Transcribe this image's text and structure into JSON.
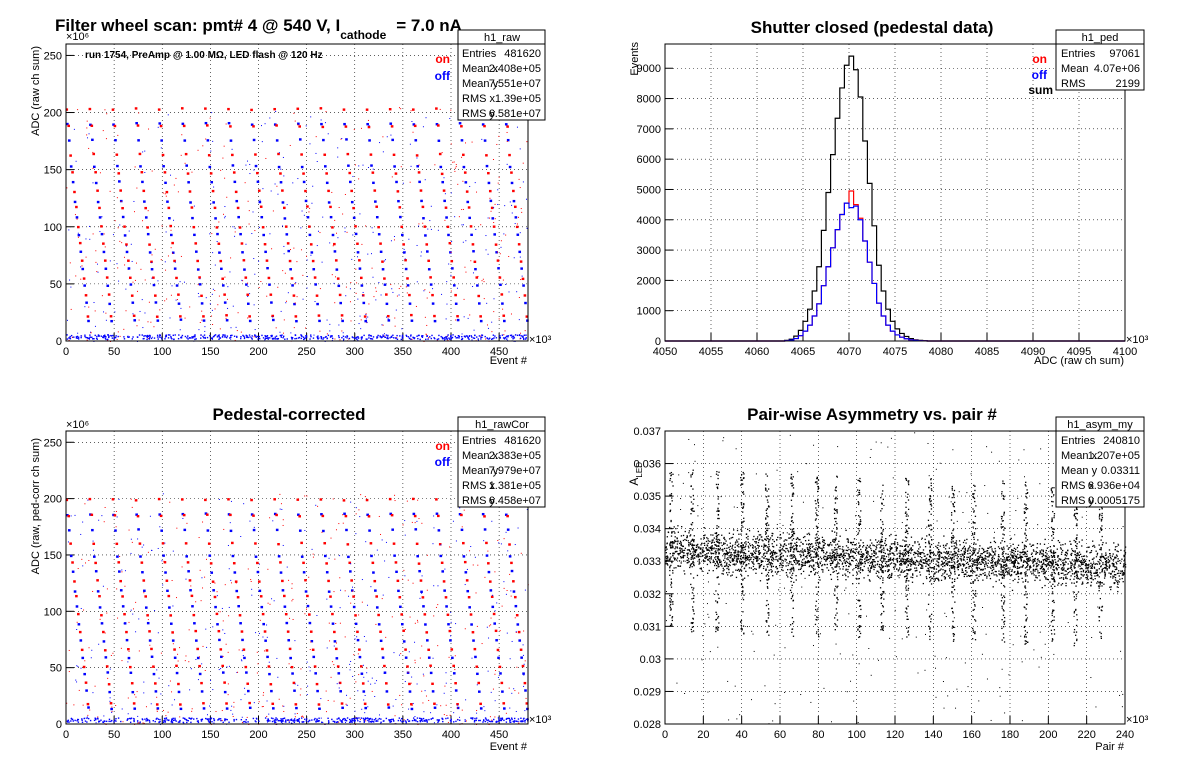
{
  "chart_data": [
    {
      "id": "raw",
      "type": "scatter",
      "title": "Filter wheel scan: pmt#   4 @   540 V, I",
      "title_sub": "cathode",
      "title_tail": "= 7.0 nA",
      "subtitle": "run 1754, PreAmp @ 1.00 MΩ, LED flash @  120 Hz",
      "xlabel": "Event #",
      "ylabel": "ADC (raw ch sum)",
      "x_multiplier": "×10³",
      "y_multiplier": "×10⁶",
      "xlim": [
        0,
        480
      ],
      "ylim": [
        0,
        260
      ],
      "xticks": [
        "0",
        "50",
        "100",
        "150",
        "200",
        "250",
        "300",
        "350",
        "400",
        "450"
      ],
      "yticks": [
        "0",
        "50",
        "100",
        "150",
        "200",
        "250"
      ],
      "grid": true,
      "legend": {
        "placement": "top-right",
        "entries": [
          "on",
          "off"
        ]
      },
      "levels_on": [
        203,
        188,
        163,
        147,
        131,
        117,
        100,
        85,
        70,
        55,
        40,
        22
      ],
      "levels_off": [
        190,
        176,
        153,
        139,
        122,
        108,
        93,
        78,
        63,
        49,
        33,
        18
      ],
      "cycle": 24,
      "series": [
        {
          "name": "on",
          "color": "#ff0000"
        },
        {
          "name": "off",
          "color": "#0000ff"
        }
      ],
      "stats": {
        "name": "h1_raw",
        "rows": [
          [
            "Entries",
            "481620"
          ],
          [
            "Mean x",
            "2.408e+05"
          ],
          [
            "Mean y",
            "7.551e+07"
          ],
          [
            "RMS x",
            "1.39e+05"
          ],
          [
            "RMS y",
            "6.581e+07"
          ]
        ]
      }
    },
    {
      "id": "ped",
      "type": "line",
      "title": "Shutter closed (pedestal data)",
      "xlabel": "ADC (raw ch sum)",
      "ylabel": "Events",
      "x_multiplier": "×10³",
      "xlim": [
        4050,
        4100
      ],
      "ylim": [
        0,
        9800
      ],
      "xticks": [
        "4050",
        "4055",
        "4060",
        "4065",
        "4070",
        "4075",
        "4080",
        "4085",
        "4090",
        "4095",
        "4100"
      ],
      "yticks": [
        "0",
        "1000",
        "2000",
        "3000",
        "4000",
        "5000",
        "6000",
        "7000",
        "8000",
        "9000"
      ],
      "grid": true,
      "legend": {
        "placement": "top-right",
        "entries": [
          "on",
          "off",
          "sum"
        ]
      },
      "x": [
        4063.0,
        4063.5,
        4064.0,
        4064.5,
        4065.0,
        4065.5,
        4066.0,
        4066.5,
        4067.0,
        4067.5,
        4068.0,
        4068.5,
        4069.0,
        4069.5,
        4070.0,
        4070.5,
        4071.0,
        4071.5,
        4072.0,
        4072.5,
        4073.0,
        4073.5,
        4074.0,
        4074.5,
        4075.0,
        4075.5,
        4076.0,
        4076.5,
        4077.0,
        4077.5,
        4078.0
      ],
      "series": [
        {
          "name": "sum",
          "color": "#000000",
          "values": [
            20,
            60,
            160,
            350,
            650,
            1050,
            1650,
            2450,
            3650,
            4900,
            6150,
            7350,
            8350,
            9100,
            9400,
            8950,
            8050,
            6600,
            5200,
            3800,
            2500,
            1650,
            1050,
            650,
            400,
            250,
            150,
            80,
            40,
            20,
            10
          ]
        },
        {
          "name": "on",
          "color": "#ff0000",
          "values": [
            10,
            30,
            80,
            175,
            325,
            525,
            825,
            1225,
            1825,
            2450,
            3075,
            3675,
            4175,
            4550,
            4950,
            4500,
            4050,
            3300,
            2600,
            1900,
            1250,
            825,
            525,
            325,
            200,
            125,
            75,
            40,
            20,
            10,
            5
          ]
        },
        {
          "name": "off",
          "color": "#0000ff",
          "values": [
            10,
            30,
            80,
            175,
            325,
            525,
            825,
            1225,
            1825,
            2450,
            3075,
            3675,
            4175,
            4550,
            4400,
            4450,
            4000,
            3300,
            2600,
            1900,
            1250,
            825,
            525,
            325,
            200,
            125,
            75,
            40,
            20,
            10,
            5
          ]
        }
      ],
      "stats": {
        "name": "h1_ped",
        "rows": [
          [
            "Entries",
            "97061"
          ],
          [
            "Mean",
            "4.07e+06"
          ],
          [
            "RMS",
            "2199"
          ]
        ]
      }
    },
    {
      "id": "cor",
      "type": "scatter",
      "title": "Pedestal-corrected",
      "xlabel": "Event #",
      "ylabel": "ADC (raw, ped-corr ch sum)",
      "x_multiplier": "×10³",
      "y_multiplier": "×10⁶",
      "xlim": [
        0,
        480
      ],
      "ylim": [
        0,
        260
      ],
      "xticks": [
        "0",
        "50",
        "100",
        "150",
        "200",
        "250",
        "300",
        "350",
        "400",
        "450"
      ],
      "yticks": [
        "0",
        "50",
        "100",
        "150",
        "200",
        "250"
      ],
      "grid": true,
      "legend": {
        "placement": "top-right",
        "entries": [
          "on",
          "off"
        ]
      },
      "levels_on": [
        199,
        185,
        160,
        143,
        127,
        113,
        97,
        82,
        66,
        51,
        36,
        18
      ],
      "levels_off": [
        186,
        172,
        149,
        135,
        118,
        104,
        89,
        74,
        59,
        45,
        29,
        14
      ],
      "cycle": 24,
      "series": [
        {
          "name": "on",
          "color": "#ff0000"
        },
        {
          "name": "off",
          "color": "#0000ff"
        }
      ],
      "stats": {
        "name": "h1_rawCor",
        "rows": [
          [
            "Entries",
            "481620"
          ],
          [
            "Mean x",
            "2.383e+05"
          ],
          [
            "Mean y",
            "7.979e+07"
          ],
          [
            "RMS x",
            "1.381e+05"
          ],
          [
            "RMS y",
            "6.458e+07"
          ]
        ]
      }
    },
    {
      "id": "asym",
      "type": "scatter",
      "title": "Pair-wise Asymmetry vs. pair #",
      "xlabel": "Pair #",
      "ylabel": "A",
      "ylabel_sub": "LED",
      "x_multiplier": "×10³",
      "xlim": [
        0,
        240
      ],
      "ylim": [
        0.028,
        0.037
      ],
      "xticks": [
        "0",
        "20",
        "40",
        "60",
        "80",
        "100",
        "120",
        "140",
        "160",
        "180",
        "200",
        "220",
        "240"
      ],
      "yticks": [
        "0.028",
        "0.029",
        "0.03",
        "0.031",
        "0.032",
        "0.033",
        "0.034",
        "0.035",
        "0.036",
        "0.037"
      ],
      "grid": true,
      "band": {
        "center_start": 0.03335,
        "center_end": 0.03285,
        "half_width": 0.0007
      },
      "spike_x": [
        3,
        14,
        27,
        40,
        53,
        66,
        79,
        89,
        101,
        113,
        126,
        138,
        150,
        161,
        176,
        188,
        202,
        214,
        227
      ],
      "series": [
        {
          "name": "",
          "color": "#000000"
        }
      ],
      "stats": {
        "name": "h1_asym_my",
        "rows": [
          [
            "Entries",
            "240810"
          ],
          [
            "Mean x",
            "1.207e+05"
          ],
          [
            "Mean y",
            "0.03311"
          ],
          [
            "RMS x",
            "6.936e+04"
          ],
          [
            "RMS y",
            "0.0005175"
          ]
        ]
      }
    }
  ]
}
